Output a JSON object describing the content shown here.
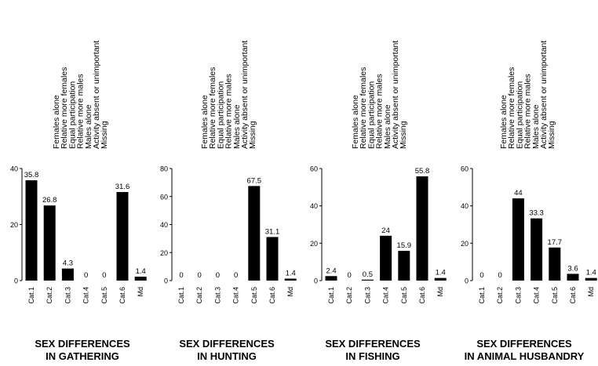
{
  "legend_lines": [
    "Females alone",
    "Relative more females",
    "Equal participation",
    "Relative more males",
    "Males alone",
    "Activity absent or unimportant",
    "Missing"
  ],
  "colors": {
    "bar": "#000000",
    "text": "#000000"
  },
  "chart_data": [
    {
      "type": "bar",
      "title_lines": [
        "SEX DIFFERENCES",
        "IN GATHERING"
      ],
      "categories": [
        "Cat.1",
        "Cat.2",
        "Cat.3",
        "Cat.4",
        "Cat.5",
        "Cat.6",
        "Md"
      ],
      "values": [
        35.8,
        26.8,
        4.3,
        0,
        0,
        31.6,
        1.4
      ],
      "ylim": [
        0,
        40
      ],
      "yticks": [
        0,
        20,
        40
      ]
    },
    {
      "type": "bar",
      "title_lines": [
        "SEX DIFFERENCES",
        "IN HUNTING"
      ],
      "categories": [
        "Cat.1",
        "Cat.2",
        "Cat.3",
        "Cat.4",
        "Cat.5",
        "Cat.6",
        "Md"
      ],
      "values": [
        0,
        0,
        0,
        0,
        67.5,
        31.1,
        1.4
      ],
      "ylim": [
        0,
        80
      ],
      "yticks": [
        0,
        20,
        40,
        60,
        80
      ]
    },
    {
      "type": "bar",
      "title_lines": [
        "SEX DIFFERENCES",
        "IN FISHING"
      ],
      "categories": [
        "Cat.1",
        "Cat.2",
        "Cat.3",
        "Cat.4",
        "Cat.5",
        "Cat.6",
        "Md"
      ],
      "values": [
        2.4,
        0,
        0.5,
        24,
        15.9,
        55.8,
        1.4
      ],
      "ylim": [
        0,
        60
      ],
      "yticks": [
        0,
        20,
        40,
        60
      ]
    },
    {
      "type": "bar",
      "title_lines": [
        "SEX DIFFERENCES",
        "IN ANIMAL HUSBANDRY"
      ],
      "categories": [
        "Cat.1",
        "Cat.2",
        "Cat.3",
        "Cat.4",
        "Cat.5",
        "Cat.6",
        "Md"
      ],
      "values": [
        0,
        0,
        44,
        33.3,
        17.7,
        3.6,
        1.4
      ],
      "ylim": [
        0,
        60
      ],
      "yticks": [
        0,
        20,
        40,
        60
      ]
    }
  ]
}
